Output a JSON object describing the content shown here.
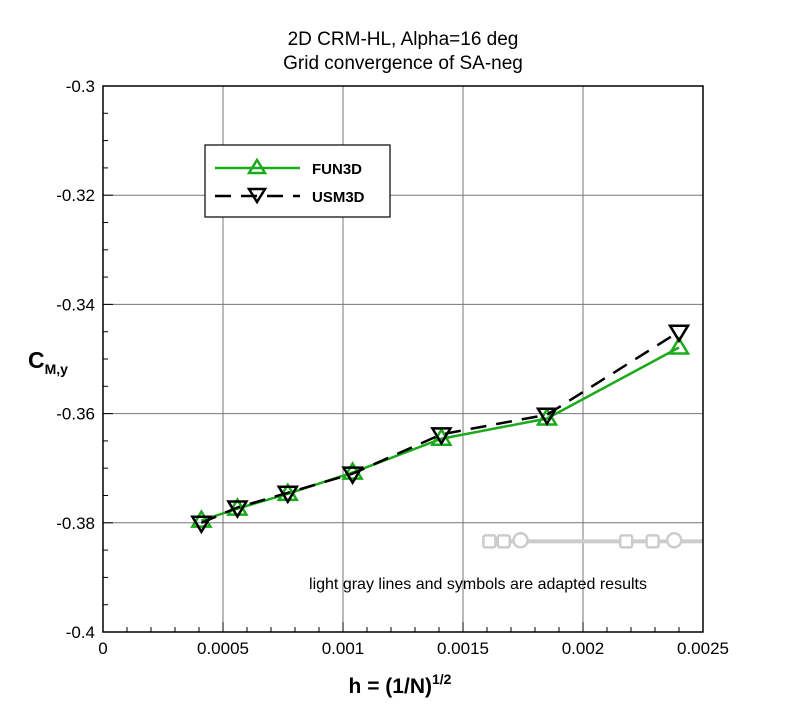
{
  "chart_data": {
    "type": "line",
    "title": "2D CRM-HL, Alpha=16 deg",
    "subtitle": "Grid convergence of SA-neg",
    "xlabel": "h = (1/N)",
    "xlabel_sup": "1/2",
    "ylabel": "C",
    "ylabel_sub": "M,y",
    "xlim": [
      0,
      0.0025
    ],
    "ylim": [
      -0.4,
      -0.3
    ],
    "xticks": [
      0,
      0.0005,
      0.001,
      0.0015,
      0.002,
      0.0025
    ],
    "xtick_labels": [
      "0",
      "0.0005",
      "0.001",
      "0.0015",
      "0.002",
      "0.0025"
    ],
    "yticks": [
      -0.4,
      -0.38,
      -0.36,
      -0.34,
      -0.32,
      -0.3
    ],
    "ytick_labels": [
      "-0.4",
      "-0.38",
      "-0.36",
      "-0.34",
      "-0.32",
      "-0.3"
    ],
    "grid": true,
    "legend_placement": "top-left",
    "series": [
      {
        "name": "FUN3D",
        "color": "#1aaa1a",
        "style": "solid",
        "marker": "triangle-up",
        "x": [
          0.00041,
          0.00056,
          0.00077,
          0.00104,
          0.00141,
          0.00185,
          0.0024
        ],
        "y": [
          -0.3796,
          -0.3774,
          -0.3747,
          -0.3708,
          -0.3646,
          -0.3609,
          -0.3479
        ]
      },
      {
        "name": "USM3D",
        "color": "#000000",
        "style": "dashed",
        "marker": "triangle-down",
        "x": [
          0.00041,
          0.00056,
          0.00077,
          0.00104,
          0.00141,
          0.00185,
          0.0024
        ],
        "y": [
          -0.38,
          -0.3772,
          -0.3745,
          -0.371,
          -0.3638,
          -0.3602,
          -0.345
        ]
      },
      {
        "color": "#cccccc",
        "style": "solid",
        "marker": "square",
        "x": [
          0.00161,
          0.00167,
          0.00218,
          0.00229,
          0.0025
        ],
        "y": [
          -0.3834,
          -0.3834,
          -0.3834,
          -0.3834,
          -0.3834
        ]
      },
      {
        "color": "#cccccc",
        "style": "none",
        "marker": "circle",
        "x": [
          0.00174,
          0.00238
        ],
        "y": [
          -0.3832,
          -0.3832
        ]
      }
    ],
    "annotation": "light gray lines and symbols are adapted results"
  }
}
